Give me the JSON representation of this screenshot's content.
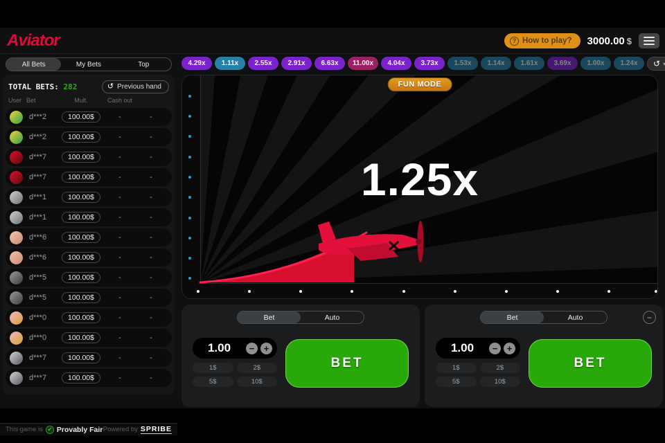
{
  "header": {
    "logo": "Aviator",
    "how_to_play": "How to play?",
    "balance": "3000.00",
    "currency": "$"
  },
  "tabs": {
    "all_bets": "All Bets",
    "my_bets": "My Bets",
    "top": "Top"
  },
  "bets_panel": {
    "total_label": "TOTAL BETS:",
    "total_value": "282",
    "previous_hand": "Previous hand",
    "columns": [
      "User",
      "Bet",
      "Mult.",
      "Cash out"
    ],
    "rows": [
      {
        "user": "d***2",
        "bet": "100.00$",
        "mult": "-",
        "cash": "-",
        "avatar": [
          "#f2d53c",
          "#2e9e4f"
        ]
      },
      {
        "user": "d***2",
        "bet": "100.00$",
        "mult": "-",
        "cash": "-",
        "avatar": [
          "#f2d53c",
          "#2e9e4f"
        ]
      },
      {
        "user": "d***7",
        "bet": "100.00$",
        "mult": "-",
        "cash": "-",
        "avatar": [
          "#e01025",
          "#5a0b12"
        ]
      },
      {
        "user": "d***7",
        "bet": "100.00$",
        "mult": "-",
        "cash": "-",
        "avatar": [
          "#e01025",
          "#5a0b12"
        ]
      },
      {
        "user": "d***1",
        "bet": "100.00$",
        "mult": "-",
        "cash": "-",
        "avatar": [
          "#cfcfcf",
          "#6e7276"
        ]
      },
      {
        "user": "d***1",
        "bet": "100.00$",
        "mult": "-",
        "cash": "-",
        "avatar": [
          "#cfcfcf",
          "#6e7276"
        ]
      },
      {
        "user": "d***6",
        "bet": "100.00$",
        "mult": "-",
        "cash": "-",
        "avatar": [
          "#f0c4ab",
          "#c98b73"
        ]
      },
      {
        "user": "d***6",
        "bet": "100.00$",
        "mult": "-",
        "cash": "-",
        "avatar": [
          "#f0c4ab",
          "#c98b73"
        ]
      },
      {
        "user": "d***5",
        "bet": "100.00$",
        "mult": "-",
        "cash": "-",
        "avatar": [
          "#9a9a9a",
          "#3c3c3c"
        ]
      },
      {
        "user": "d***5",
        "bet": "100.00$",
        "mult": "-",
        "cash": "-",
        "avatar": [
          "#9a9a9a",
          "#3c3c3c"
        ]
      },
      {
        "user": "d***0",
        "bet": "100.00$",
        "mult": "-",
        "cash": "-",
        "avatar": [
          "#f2b8c6",
          "#d7a032"
        ]
      },
      {
        "user": "d***0",
        "bet": "100.00$",
        "mult": "-",
        "cash": "-",
        "avatar": [
          "#f2b8c6",
          "#d7a032"
        ]
      },
      {
        "user": "d***7",
        "bet": "100.00$",
        "mult": "-",
        "cash": "-",
        "avatar": [
          "#d4d4d4",
          "#55585e"
        ]
      },
      {
        "user": "d***7",
        "bet": "100.00$",
        "mult": "-",
        "cash": "-",
        "avatar": [
          "#d4d4d4",
          "#55585e"
        ]
      }
    ]
  },
  "footer": {
    "prefix": "This game is",
    "fair": "Provably Fair",
    "powered": "Powered by",
    "brand": "SPRIBE"
  },
  "history": {
    "chips": [
      {
        "label": "4.29x",
        "color": "purple",
        "faded": false
      },
      {
        "label": "1.11x",
        "color": "blue",
        "faded": false
      },
      {
        "label": "2.55x",
        "color": "purple",
        "faded": false
      },
      {
        "label": "2.91x",
        "color": "purple",
        "faded": false
      },
      {
        "label": "6.63x",
        "color": "purple",
        "faded": false
      },
      {
        "label": "11.00x",
        "color": "magenta",
        "faded": false
      },
      {
        "label": "4.04x",
        "color": "purple",
        "faded": false
      },
      {
        "label": "3.73x",
        "color": "purple",
        "faded": false
      },
      {
        "label": "1.53x",
        "color": "blue",
        "faded": true
      },
      {
        "label": "1.14x",
        "color": "blue",
        "faded": true
      },
      {
        "label": "1.61x",
        "color": "blue",
        "faded": true
      },
      {
        "label": "3.69x",
        "color": "purple",
        "faded": true
      },
      {
        "label": "1.00x",
        "color": "blue",
        "faded": true
      },
      {
        "label": "1.24x",
        "color": "blue",
        "faded": true
      }
    ]
  },
  "game": {
    "badge": "FUN MODE",
    "multiplier": "1.25x"
  },
  "bet_controls": {
    "bet_tab": "Bet",
    "auto_tab": "Auto",
    "amount": "1.00",
    "quick_chips": [
      "1$",
      "2$",
      "5$",
      "10$"
    ],
    "bet_button": "BET"
  },
  "icons": {
    "question": "?",
    "prev_hand_clock": "↺",
    "history_clock": "↺",
    "caret_down": "▾",
    "minus": "−",
    "plus": "+",
    "remove_panel": "−",
    "shield_check": "✔"
  },
  "colors": {
    "logo_red": "#e50539",
    "accent_green": "#28a909",
    "orange": "#df9019",
    "chip_purple": "#7b22cc",
    "chip_blue": "#2581a8",
    "chip_magenta": "#9c2063",
    "axis_dot_blue": "#2d9ddb",
    "plane_red": "#e3103c"
  }
}
